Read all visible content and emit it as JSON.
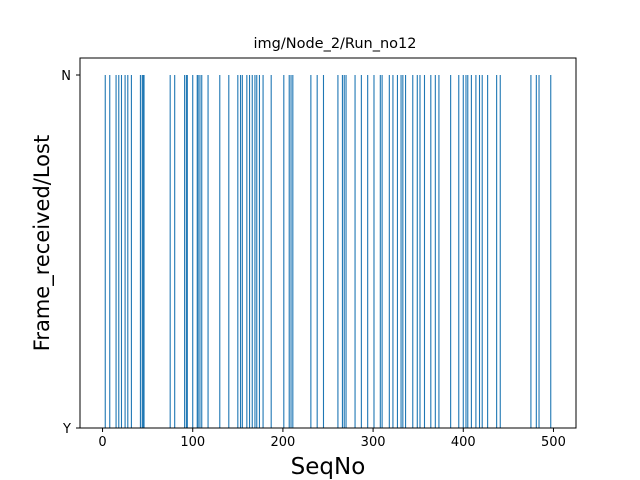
{
  "chart_data": {
    "type": "bar",
    "title": "img/Node_2/Run_no12",
    "xlabel": "SeqNo",
    "ylabel": "Frame_received/Lost",
    "xlim": [
      -25,
      525
    ],
    "xticks": [
      0,
      100,
      200,
      300,
      400,
      500
    ],
    "yticks": [
      "Y",
      "N"
    ],
    "bar_color": "#1f77b4",
    "series": [
      {
        "values": [
          3,
          8,
          15,
          18,
          21,
          25,
          28,
          32,
          42,
          44,
          45,
          46,
          75,
          80,
          91,
          93,
          94,
          100,
          105,
          106,
          108,
          110,
          117,
          130,
          140,
          150,
          153,
          155,
          160,
          163,
          166,
          169,
          171,
          174,
          178,
          187,
          201,
          207,
          209,
          211,
          231,
          238,
          245,
          261,
          266,
          268,
          270,
          280,
          287,
          294,
          301,
          308,
          310,
          318,
          322,
          327,
          331,
          333,
          336,
          344,
          349,
          352,
          357,
          364,
          369,
          373,
          386,
          395,
          400,
          403,
          405,
          409,
          414,
          418,
          421,
          427,
          437,
          441,
          475,
          481,
          484,
          497
        ]
      }
    ]
  }
}
